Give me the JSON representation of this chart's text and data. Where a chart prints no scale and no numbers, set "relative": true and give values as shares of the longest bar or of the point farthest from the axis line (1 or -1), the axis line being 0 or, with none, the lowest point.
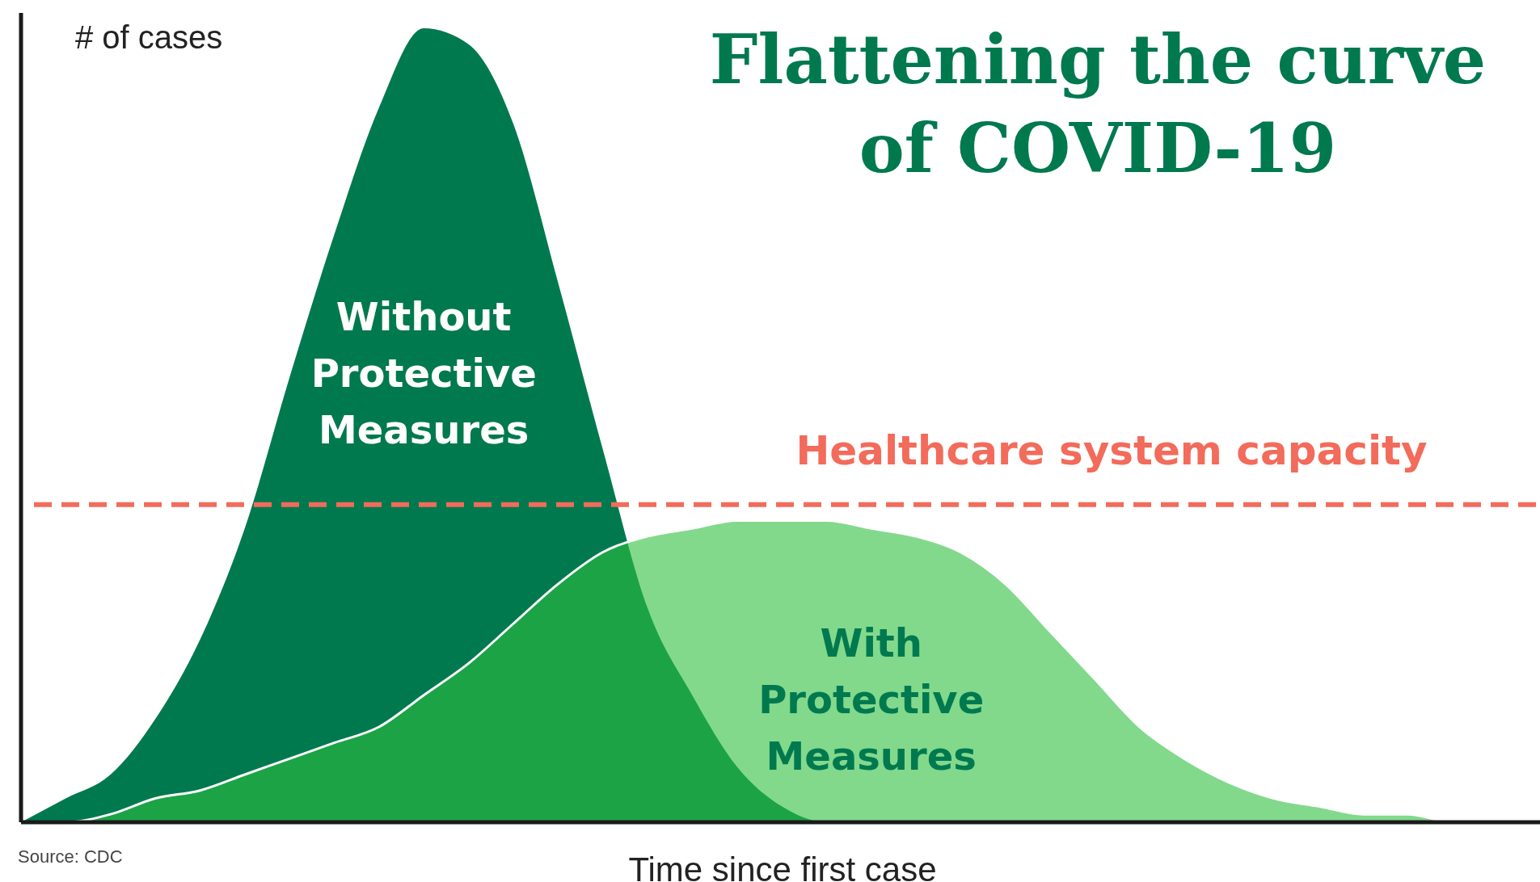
{
  "chart_data": {
    "type": "area",
    "title": "Flattening the curve of COVID-19",
    "xlabel": "Time since first case",
    "ylabel": "# of cases",
    "relative": true,
    "legend": false,
    "categories": [
      null,
      null,
      null,
      null,
      null,
      null,
      null,
      null,
      null,
      null,
      null,
      null,
      null,
      null,
      null,
      null,
      null,
      null,
      null,
      null,
      null,
      null,
      null,
      null,
      null,
      null,
      null,
      null,
      null,
      null,
      null,
      null,
      null,
      null,
      null
    ],
    "series": [
      {
        "name": "Without Protective Measures",
        "color": "#00794f",
        "values": [
          0,
          0.03,
          0.06,
          0.13,
          0.23,
          0.37,
          0.56,
          0.74,
          0.9,
          1,
          0.98,
          0.88,
          0.68,
          0.47,
          0.27,
          0.16,
          0.07,
          0.02,
          0,
          0,
          0,
          0,
          0,
          0,
          0,
          0,
          0,
          0,
          0,
          0,
          0,
          0,
          0,
          0,
          0
        ]
      },
      {
        "name": "With Protective Measures",
        "color": "#2fbf3f",
        "values": [
          0,
          0,
          0.01,
          0.03,
          0.04,
          0.06,
          0.08,
          0.1,
          0.12,
          0.16,
          0.2,
          0.25,
          0.3,
          0.34,
          0.36,
          0.37,
          0.38,
          0.38,
          0.38,
          0.37,
          0.36,
          0.34,
          0.3,
          0.24,
          0.18,
          0.12,
          0.08,
          0.05,
          0.03,
          0.02,
          0.01,
          0.01,
          0,
          0,
          0
        ]
      }
    ],
    "ref_lines": [
      {
        "axis": "y",
        "value": 0.4,
        "label": "Healthcare system capacity",
        "color": "#f26b5b",
        "line_style": "dashed"
      }
    ],
    "annotations": [
      "Source: CDC"
    ]
  }
}
